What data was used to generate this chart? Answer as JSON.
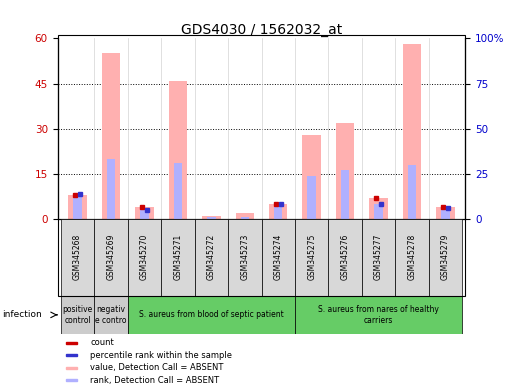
{
  "title": "GDS4030 / 1562032_at",
  "samples": [
    "GSM345268",
    "GSM345269",
    "GSM345270",
    "GSM345271",
    "GSM345272",
    "GSM345273",
    "GSM345274",
    "GSM345275",
    "GSM345276",
    "GSM345277",
    "GSM345278",
    "GSM345279"
  ],
  "pink_bars": [
    8,
    55,
    4,
    46,
    1,
    2,
    5,
    28,
    32,
    7,
    58,
    4
  ],
  "blue_bars": [
    14,
    33,
    5,
    31,
    1,
    1,
    8,
    24,
    27,
    8,
    30,
    6
  ],
  "red_squares": [
    8,
    0,
    4,
    0,
    0,
    0,
    5,
    0,
    0,
    7,
    0,
    4
  ],
  "blue_squares": [
    14,
    0,
    5,
    0,
    0,
    0,
    8,
    0,
    0,
    8,
    0,
    6
  ],
  "left_ylim": [
    0,
    60
  ],
  "right_ylim": [
    0,
    100
  ],
  "left_yticks": [
    0,
    15,
    30,
    45,
    60
  ],
  "right_yticks": [
    0,
    25,
    50,
    75,
    100
  ],
  "right_yticklabels": [
    "0",
    "25",
    "50",
    "75",
    "100%"
  ],
  "groups": [
    {
      "label": "positive\ncontrol",
      "start": 0,
      "end": 1,
      "color": "#cccccc"
    },
    {
      "label": "negativ\ne contro",
      "start": 1,
      "end": 2,
      "color": "#cccccc"
    },
    {
      "label": "S. aureus from blood of septic patient",
      "start": 2,
      "end": 7,
      "color": "#66cc66"
    },
    {
      "label": "S. aureus from nares of healthy\ncarriers",
      "start": 7,
      "end": 12,
      "color": "#66cc66"
    }
  ],
  "infection_label": "infection",
  "legend_items": [
    {
      "color": "#cc0000",
      "label": "count"
    },
    {
      "color": "#3333cc",
      "label": "percentile rank within the sample"
    },
    {
      "color": "#ffb0b0",
      "label": "value, Detection Call = ABSENT"
    },
    {
      "color": "#b0b0ff",
      "label": "rank, Detection Call = ABSENT"
    }
  ],
  "pink_color": "#ffb0b0",
  "blue_bar_color": "#b0b0ff",
  "red_sq_color": "#cc0000",
  "blue_sq_color": "#3333cc",
  "pink_bar_width": 0.55,
  "blue_bar_width": 0.25
}
